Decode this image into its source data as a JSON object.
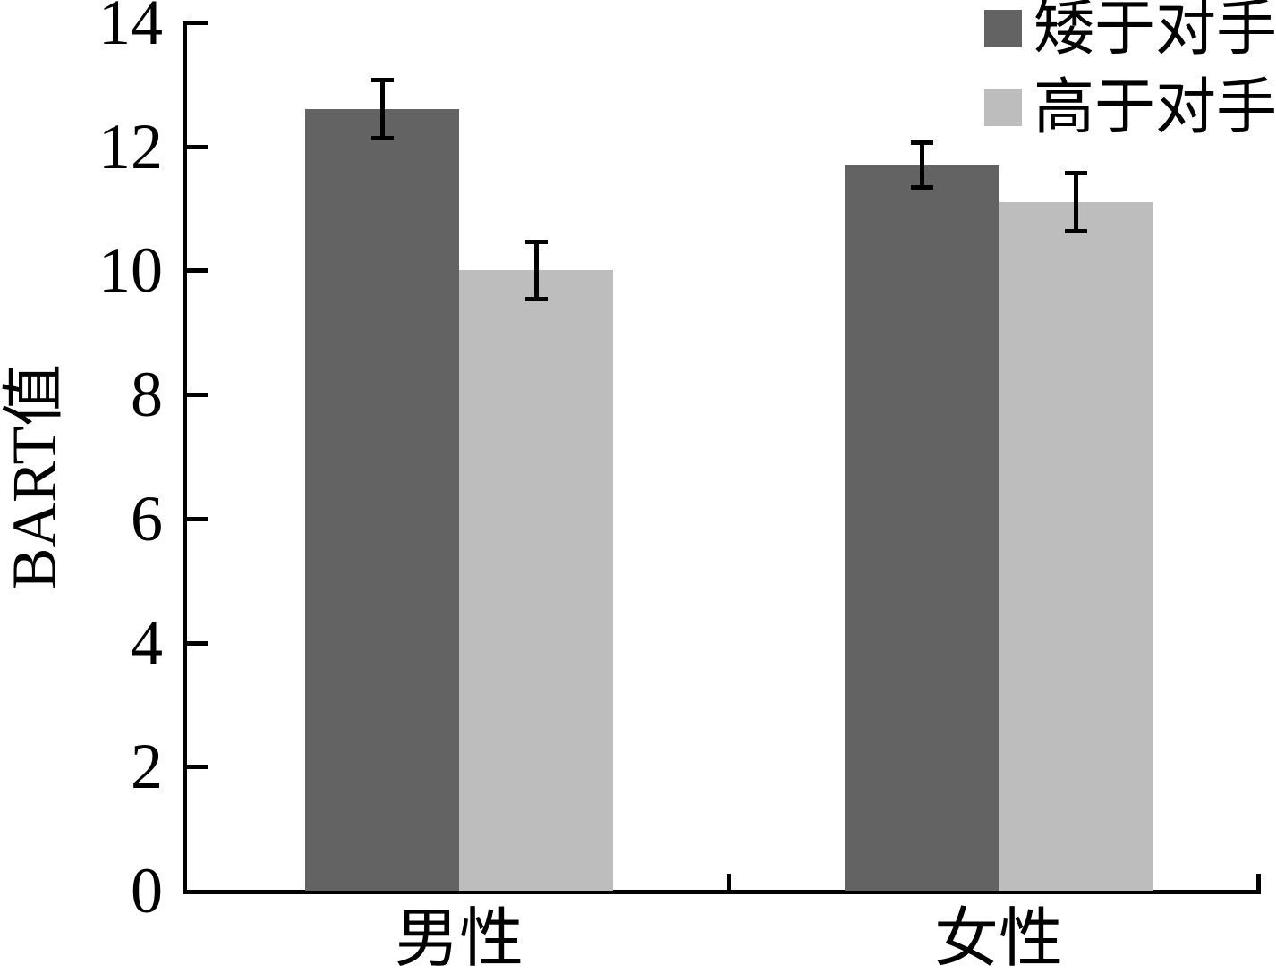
{
  "chart_data": {
    "type": "bar",
    "title": "",
    "categories": [
      "男性",
      "女性"
    ],
    "series": [
      {
        "name": "矮于对手",
        "color": "#636363",
        "values": [
          12.6,
          11.7
        ],
        "errors": [
          0.5,
          0.4
        ]
      },
      {
        "name": "高于对手",
        "color": "#bdbdbd",
        "values": [
          10.0,
          11.1
        ],
        "errors": [
          0.5,
          0.5
        ]
      }
    ],
    "ylabel": "BART值",
    "xlabel": "",
    "ylim": [
      0,
      14
    ],
    "yticks": [
      0,
      2,
      4,
      6,
      8,
      10,
      12,
      14
    ],
    "grid": false,
    "error_bars": true,
    "legend_position": "top-right",
    "axis_color": "#000000",
    "background_color": "#ffffff",
    "tick_direction": "in"
  }
}
